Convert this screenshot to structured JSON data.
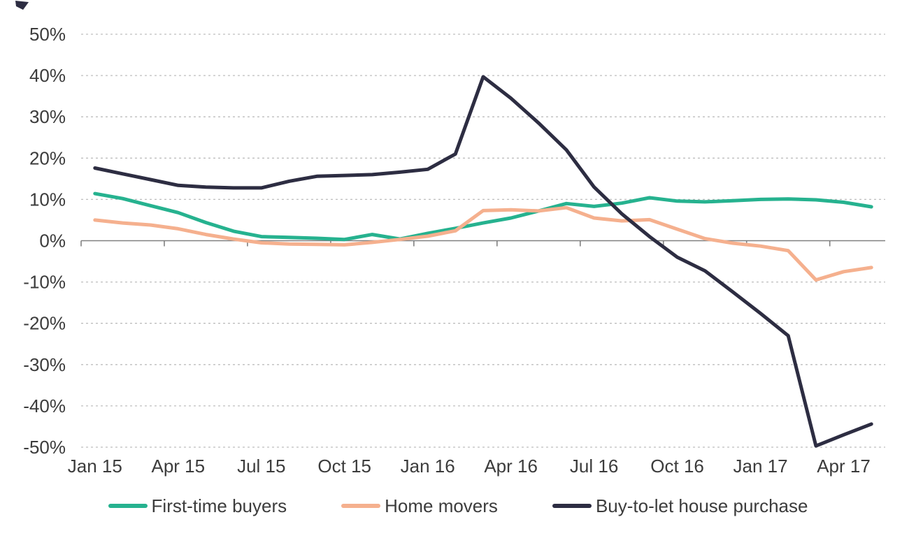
{
  "page": {
    "background": "#ffffff"
  },
  "chart_data": {
    "type": "line",
    "x": [
      "Jan 15",
      "Feb 15",
      "Mar 15",
      "Apr 15",
      "May 15",
      "Jun 15",
      "Jul 15",
      "Aug 15",
      "Sep 15",
      "Oct 15",
      "Nov 15",
      "Dec 15",
      "Jan 16",
      "Feb 16",
      "Mar 16",
      "Apr 16",
      "May 16",
      "Jun 16",
      "Jul 16",
      "Aug 16",
      "Sep 16",
      "Oct 16",
      "Nov 16",
      "Dec 16",
      "Jan 17",
      "Feb 17",
      "Mar 17",
      "Apr 17",
      "May 17"
    ],
    "x_tick_labels": [
      "Jan 15",
      "Apr 15",
      "Jul 15",
      "Oct 15",
      "Jan 16",
      "Apr 16",
      "Jul 16",
      "Oct 16",
      "Jan 17",
      "Apr 17"
    ],
    "x_tick_every": 3,
    "y_tick_labels": [
      "50%",
      "40%",
      "30%",
      "20%",
      "10%",
      "0%",
      "-10%",
      "-20%",
      "-30%",
      "-40%",
      "-50%"
    ],
    "y_tick_values": [
      50,
      40,
      30,
      20,
      10,
      0,
      -10,
      -20,
      -30,
      -40,
      -50
    ],
    "ylim": [
      -50,
      50
    ],
    "ytick_step": 10,
    "y_format": "percent",
    "grid": "horizontal-dashed",
    "legend_position": "bottom",
    "series": [
      {
        "name": "First-time buyers",
        "color": "#26b28f",
        "values": [
          11.4,
          10.2,
          8.5,
          6.8,
          4.4,
          2.3,
          1.0,
          0.8,
          0.6,
          0.3,
          1.5,
          0.4,
          1.8,
          3.0,
          4.3,
          5.5,
          7.2,
          9.0,
          8.3,
          9.1,
          10.4,
          9.6,
          9.4,
          9.7,
          10.0,
          10.1,
          9.9,
          9.3,
          8.2
        ]
      },
      {
        "name": "Home movers",
        "color": "#f5b08e",
        "values": [
          5.0,
          4.3,
          3.8,
          2.9,
          1.5,
          0.4,
          -0.5,
          -0.8,
          -0.9,
          -1.0,
          -0.4,
          0.3,
          1.1,
          2.4,
          7.3,
          7.5,
          7.2,
          8.0,
          5.5,
          4.8,
          5.1,
          2.8,
          0.5,
          -0.6,
          -1.3,
          -2.4,
          -9.5,
          -7.5,
          -6.5
        ]
      },
      {
        "name": "Buy-to-let house purchase",
        "color": "#2d2d42",
        "values": [
          17.6,
          16.2,
          14.8,
          13.4,
          13.0,
          12.8,
          12.8,
          14.4,
          15.6,
          15.8,
          16.0,
          16.6,
          17.3,
          21.0,
          39.7,
          34.5,
          28.5,
          22.0,
          13.0,
          6.5,
          1.0,
          -4.0,
          -7.3,
          -12.4,
          -17.6,
          -23.0,
          -49.7,
          -47.0,
          -44.4
        ]
      }
    ],
    "axis_colors": {
      "grid": "#bdbdbd",
      "axis_line": "#808080",
      "tick_text": "#3c3c3c"
    }
  }
}
